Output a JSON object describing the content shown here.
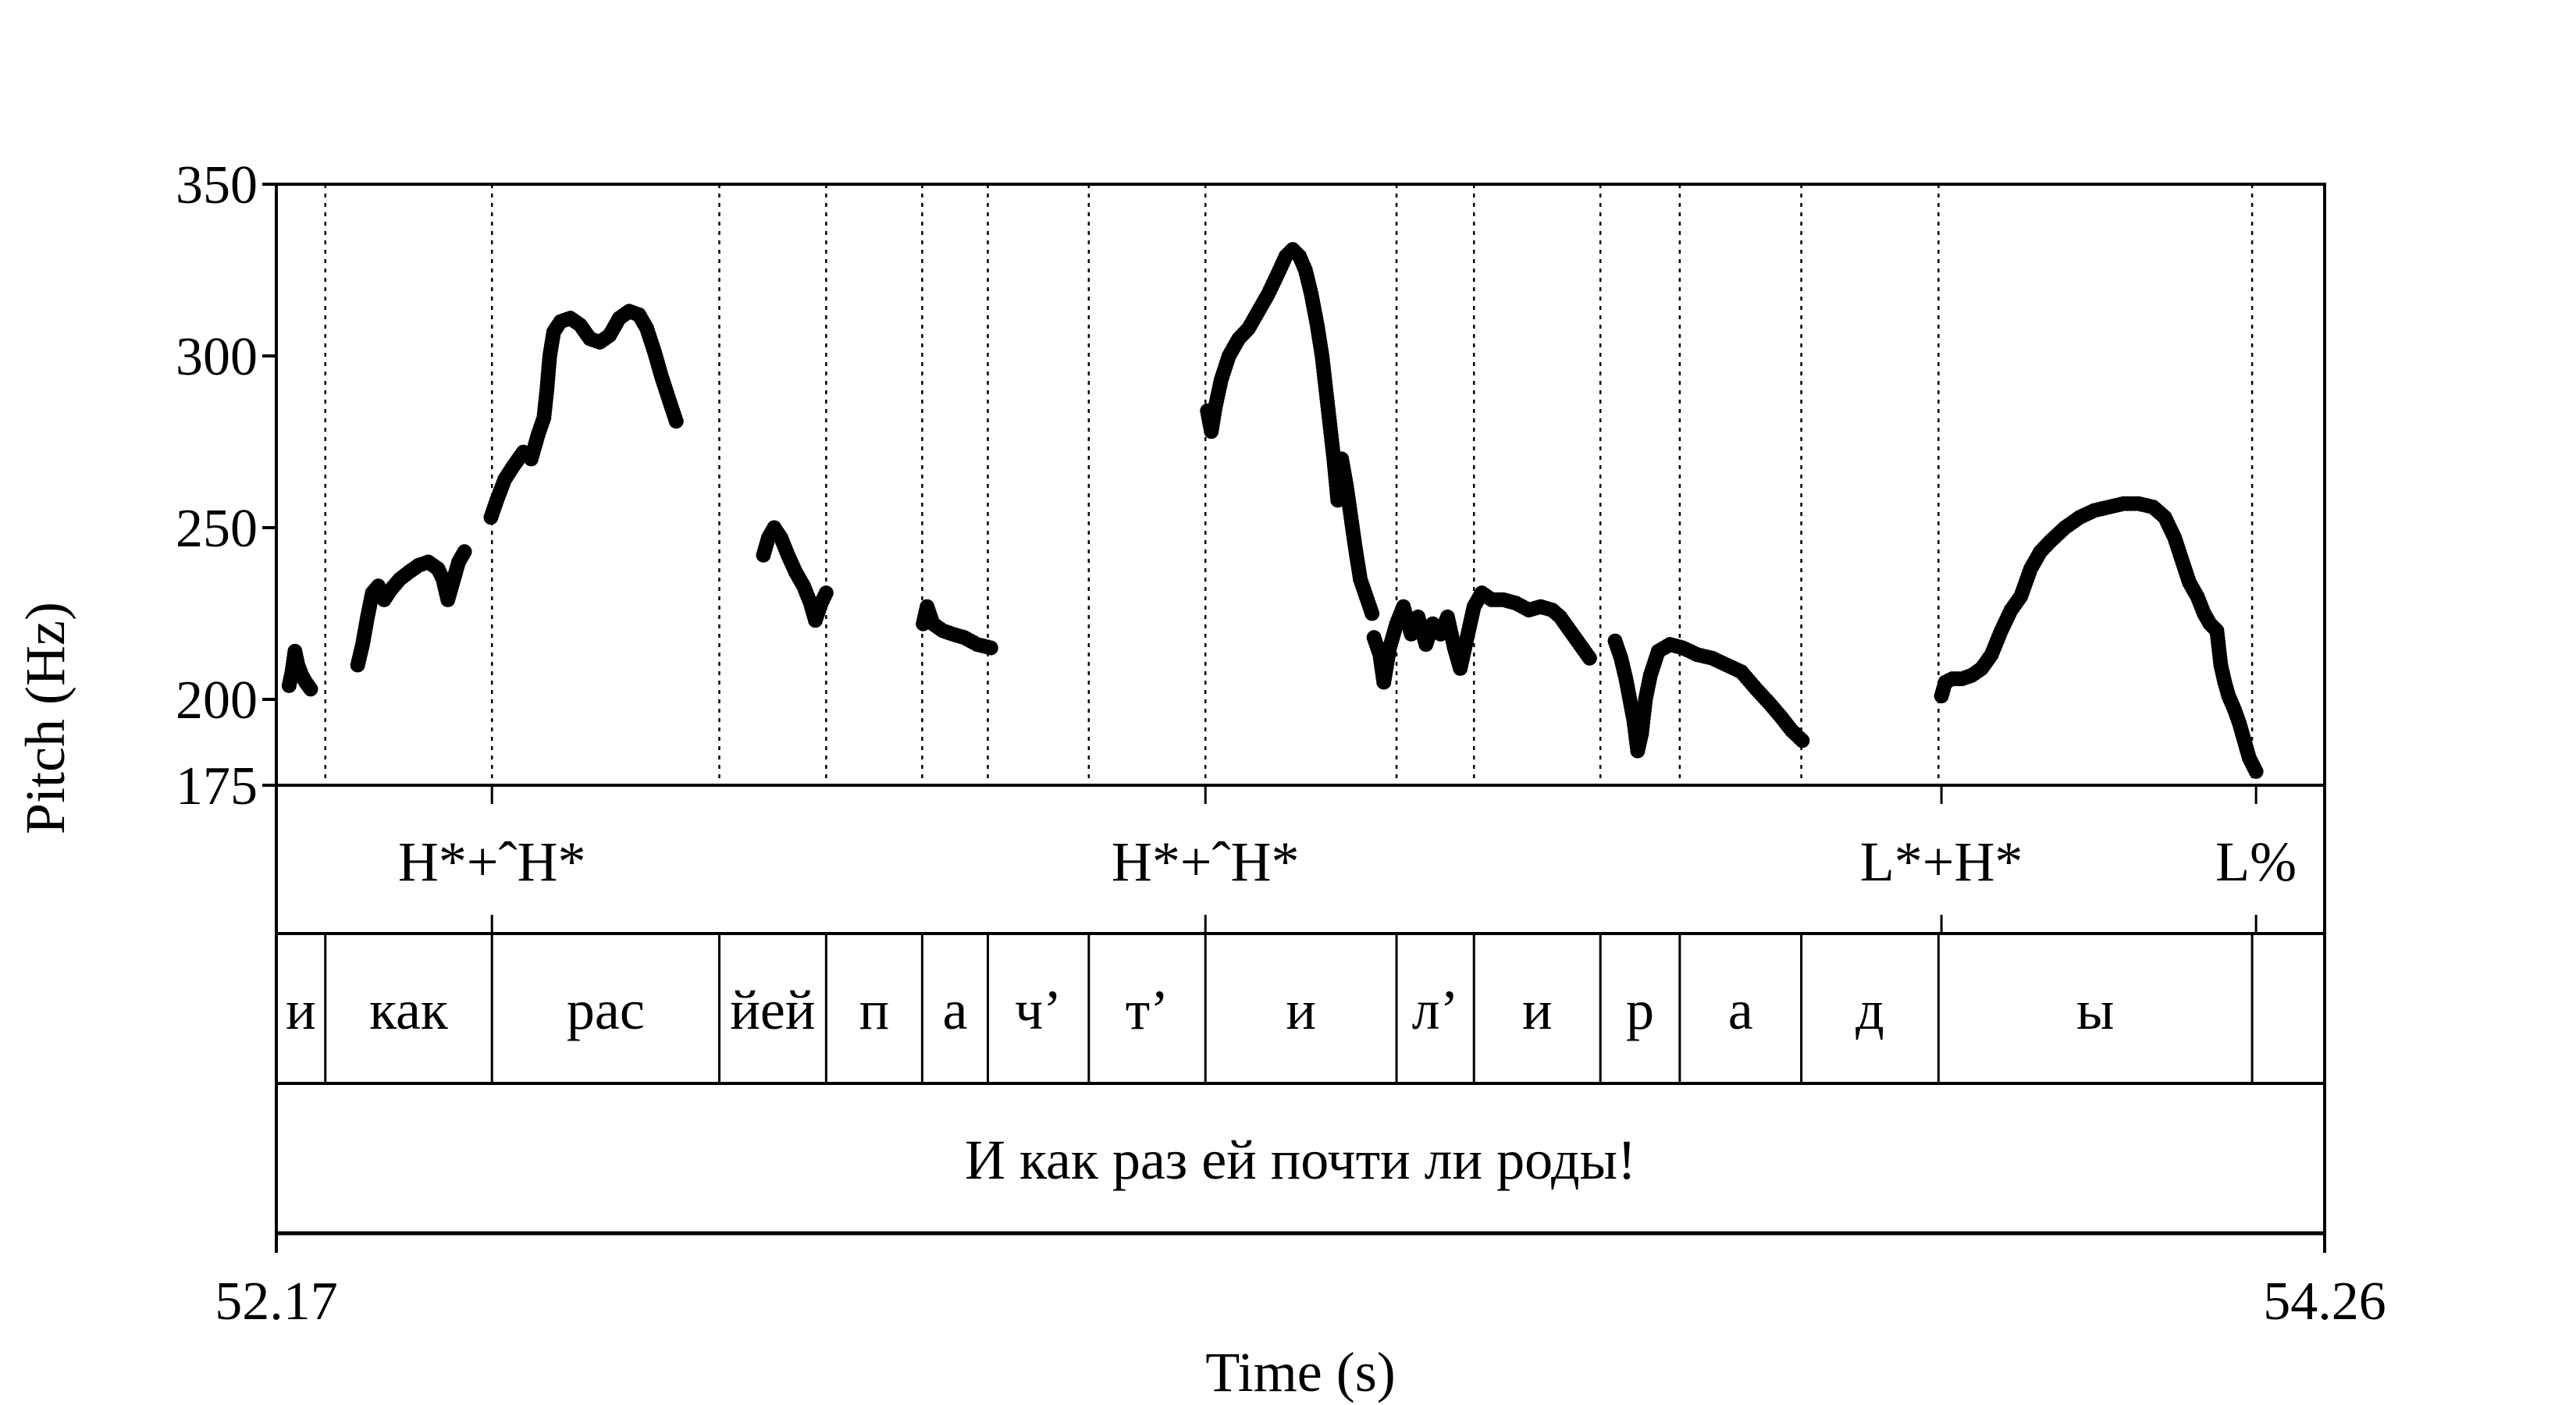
{
  "chart_data": {
    "type": "scatter",
    "xlabel": "Time (s)",
    "ylabel": "Pitch (Hz)",
    "xlim": [
      52.17,
      54.26
    ],
    "ylim": [
      175,
      350
    ],
    "yticks": [
      175,
      200,
      250,
      300,
      350
    ],
    "xticks": [
      52.17,
      54.26
    ],
    "point_color": "#000000",
    "tone_tier": [
      {
        "label": "H*+ˆH*",
        "time": 52.39
      },
      {
        "label": "H*+ˆH*",
        "time": 53.118
      },
      {
        "label": "L*+H*",
        "time": 53.869
      },
      {
        "label": "L%",
        "time": 54.19
      }
    ],
    "segment_tier": [
      {
        "label": "и",
        "start": 52.17,
        "end": 52.22
      },
      {
        "label": "как",
        "start": 52.22,
        "end": 52.39
      },
      {
        "label": "рас",
        "start": 52.39,
        "end": 52.622
      },
      {
        "label": "йей",
        "start": 52.622,
        "end": 52.731
      },
      {
        "label": "п",
        "start": 52.731,
        "end": 52.829
      },
      {
        "label": "а",
        "start": 52.829,
        "end": 52.896
      },
      {
        "label": "ч’",
        "start": 52.896,
        "end": 52.999
      },
      {
        "label": "т’",
        "start": 52.999,
        "end": 53.118
      },
      {
        "label": "и",
        "start": 53.118,
        "end": 53.313
      },
      {
        "label": "л’",
        "start": 53.313,
        "end": 53.392
      },
      {
        "label": "и",
        "start": 53.392,
        "end": 53.521
      },
      {
        "label": "р",
        "start": 53.521,
        "end": 53.602
      },
      {
        "label": "а",
        "start": 53.602,
        "end": 53.726
      },
      {
        "label": "д",
        "start": 53.726,
        "end": 53.866
      },
      {
        "label": "ы",
        "start": 53.866,
        "end": 54.186
      },
      {
        "label": "",
        "start": 54.186,
        "end": 54.26
      }
    ],
    "utterance": "И как раз ей почти ли роды!",
    "tier_boundaries": [
      52.22,
      52.39,
      52.622,
      52.731,
      52.829,
      52.896,
      52.999,
      53.118,
      53.313,
      53.392,
      53.521,
      53.602,
      53.726,
      53.866,
      54.186
    ],
    "pitch_segments": [
      [
        [
          52.183,
          204
        ],
        [
          52.186,
          208
        ],
        [
          52.189,
          214
        ],
        [
          52.192,
          210
        ],
        [
          52.196,
          207
        ],
        [
          52.2,
          205
        ],
        [
          52.205,
          203
        ]
      ],
      [
        [
          52.253,
          210
        ],
        [
          52.258,
          216
        ],
        [
          52.263,
          224
        ],
        [
          52.268,
          231
        ],
        [
          52.274,
          233
        ],
        [
          52.28,
          229
        ],
        [
          52.287,
          232
        ],
        [
          52.296,
          235
        ],
        [
          52.305,
          237
        ],
        [
          52.315,
          239
        ],
        [
          52.325,
          240
        ],
        [
          52.335,
          238
        ],
        [
          52.34,
          235
        ],
        [
          52.345,
          229
        ],
        [
          52.35,
          234
        ],
        [
          52.356,
          240
        ],
        [
          52.362,
          243
        ]
      ],
      [
        [
          52.389,
          253
        ],
        [
          52.395,
          258
        ],
        [
          52.403,
          264
        ],
        [
          52.412,
          268
        ],
        [
          52.422,
          272
        ],
        [
          52.43,
          270
        ],
        [
          52.437,
          277
        ],
        [
          52.443,
          282
        ],
        [
          52.446,
          290
        ],
        [
          52.449,
          300
        ],
        [
          52.453,
          307
        ],
        [
          52.46,
          310
        ],
        [
          52.47,
          311
        ],
        [
          52.48,
          309
        ],
        [
          52.49,
          305
        ],
        [
          52.5,
          304
        ],
        [
          52.51,
          306
        ],
        [
          52.52,
          311
        ],
        [
          52.53,
          313
        ],
        [
          52.54,
          312
        ],
        [
          52.548,
          308
        ],
        [
          52.556,
          301
        ],
        [
          52.563,
          294
        ],
        [
          52.571,
          287
        ],
        [
          52.578,
          281
        ]
      ],
      [
        [
          52.667,
          242
        ],
        [
          52.672,
          247
        ],
        [
          52.678,
          250
        ],
        [
          52.685,
          247
        ],
        [
          52.692,
          242
        ],
        [
          52.7,
          237
        ],
        [
          52.708,
          233
        ],
        [
          52.715,
          228
        ],
        [
          52.72,
          223
        ],
        [
          52.726,
          228
        ],
        [
          52.731,
          231
        ]
      ],
      [
        [
          52.83,
          222
        ],
        [
          52.834,
          227
        ],
        [
          52.84,
          222
        ],
        [
          52.85,
          220
        ],
        [
          52.86,
          219
        ],
        [
          52.872,
          218
        ],
        [
          52.885,
          216
        ],
        [
          52.899,
          215
        ]
      ],
      [
        [
          53.12,
          284
        ],
        [
          53.124,
          278
        ],
        [
          53.128,
          285
        ],
        [
          53.134,
          293
        ],
        [
          53.142,
          300
        ],
        [
          53.152,
          305
        ],
        [
          53.162,
          308
        ],
        [
          53.172,
          313
        ],
        [
          53.182,
          318
        ],
        [
          53.192,
          324
        ],
        [
          53.2,
          329
        ],
        [
          53.207,
          331
        ],
        [
          53.214,
          329
        ],
        [
          53.22,
          325
        ],
        [
          53.226,
          318
        ],
        [
          53.232,
          309
        ],
        [
          53.237,
          300
        ],
        [
          53.241,
          290
        ],
        [
          53.245,
          280
        ],
        [
          53.249,
          270
        ],
        [
          53.253,
          258
        ],
        [
          53.257,
          270
        ],
        [
          53.262,
          262
        ],
        [
          53.267,
          252
        ],
        [
          53.271,
          244
        ],
        [
          53.276,
          235
        ],
        [
          53.282,
          230
        ],
        [
          53.288,
          225
        ]
      ],
      [
        [
          53.29,
          218
        ],
        [
          53.296,
          213
        ],
        [
          53.3,
          205
        ],
        [
          53.306,
          215
        ],
        [
          53.313,
          222
        ],
        [
          53.32,
          227
        ],
        [
          53.328,
          219
        ],
        [
          53.335,
          224
        ],
        [
          53.343,
          216
        ],
        [
          53.35,
          222
        ],
        [
          53.358,
          219
        ],
        [
          53.365,
          224
        ],
        [
          53.372,
          215
        ],
        [
          53.378,
          209
        ],
        [
          53.385,
          218
        ],
        [
          53.392,
          227
        ],
        [
          53.4,
          231
        ],
        [
          53.41,
          229
        ],
        [
          53.422,
          229
        ],
        [
          53.435,
          228
        ],
        [
          53.448,
          226
        ],
        [
          53.46,
          227
        ],
        [
          53.472,
          226
        ],
        [
          53.48,
          224
        ],
        [
          53.49,
          220
        ],
        [
          53.5,
          216
        ],
        [
          53.51,
          212
        ]
      ],
      [
        [
          53.536,
          217
        ],
        [
          53.542,
          212
        ],
        [
          53.547,
          206
        ],
        [
          53.551,
          200
        ],
        [
          53.555,
          194
        ],
        [
          53.559,
          185
        ],
        [
          53.563,
          190
        ],
        [
          53.567,
          200
        ],
        [
          53.572,
          207
        ],
        [
          53.58,
          214
        ],
        [
          53.592,
          216
        ],
        [
          53.605,
          215
        ],
        [
          53.62,
          213
        ],
        [
          53.635,
          212
        ],
        [
          53.65,
          210
        ],
        [
          53.665,
          208
        ],
        [
          53.68,
          203
        ],
        [
          53.693,
          199
        ],
        [
          53.705,
          195
        ],
        [
          53.716,
          191
        ],
        [
          53.727,
          188
        ]
      ],
      [
        [
          53.869,
          201
        ],
        [
          53.873,
          205
        ],
        [
          53.88,
          206
        ],
        [
          53.89,
          206
        ],
        [
          53.9,
          207
        ],
        [
          53.91,
          209
        ],
        [
          53.92,
          213
        ],
        [
          53.93,
          220
        ],
        [
          53.94,
          226
        ],
        [
          53.95,
          230
        ],
        [
          53.96,
          238
        ],
        [
          53.97,
          243
        ],
        [
          53.98,
          246
        ],
        [
          53.995,
          250
        ],
        [
          54.01,
          253
        ],
        [
          54.025,
          255
        ],
        [
          54.04,
          256
        ],
        [
          54.055,
          257
        ],
        [
          54.07,
          257
        ],
        [
          54.085,
          256
        ],
        [
          54.097,
          253
        ],
        [
          54.107,
          247
        ],
        [
          54.115,
          240
        ],
        [
          54.122,
          234
        ],
        [
          54.13,
          230
        ],
        [
          54.137,
          225
        ],
        [
          54.143,
          222
        ],
        [
          54.15,
          220
        ],
        [
          54.154,
          210
        ],
        [
          54.158,
          205
        ],
        [
          54.162,
          201
        ],
        [
          54.168,
          197
        ],
        [
          54.173,
          193
        ],
        [
          54.178,
          188
        ],
        [
          54.183,
          183
        ],
        [
          54.19,
          179
        ]
      ]
    ]
  }
}
